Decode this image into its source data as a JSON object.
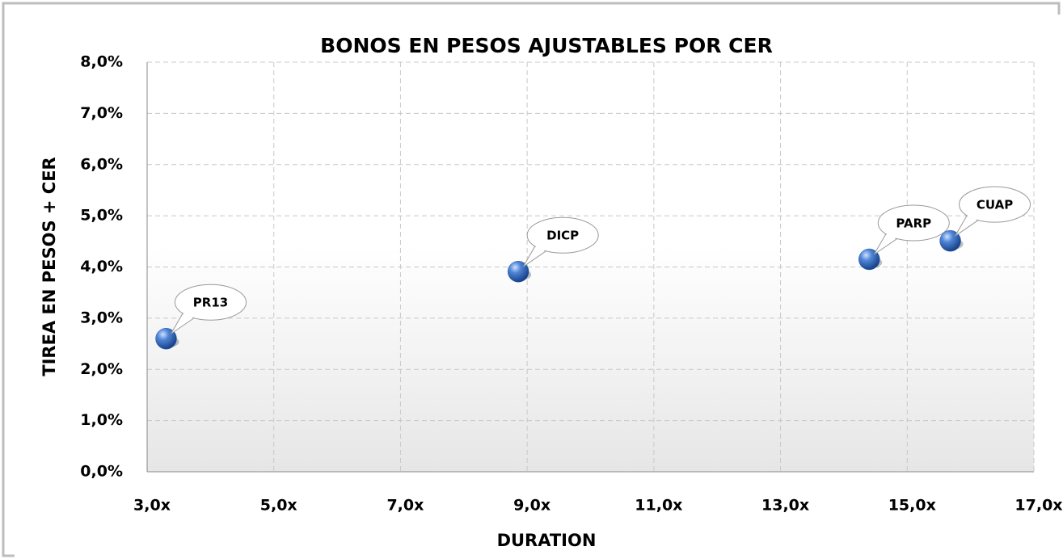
{
  "chart_data": {
    "type": "scatter",
    "title": "BONOS EN PESOS AJUSTABLES  POR CER",
    "xlabel": "DURATION",
    "ylabel": "TIREA EN PESOS + CER",
    "x": [
      3.3,
      8.86,
      14.4,
      15.68
    ],
    "values": [
      2.6,
      3.91,
      4.15,
      4.51
    ],
    "labels": [
      "PR13",
      "DICP",
      "PARP",
      "CUAP"
    ],
    "color": "#2f62b8",
    "xlim": [
      3,
      17
    ],
    "ylim": [
      0,
      8
    ],
    "xticks": [
      {
        "value": 3,
        "label": "3,0x"
      },
      {
        "value": 5,
        "label": "5,0x"
      },
      {
        "value": 7,
        "label": "7,0x"
      },
      {
        "value": 9,
        "label": "9,0x"
      },
      {
        "value": 11,
        "label": "11,0x"
      },
      {
        "value": 13,
        "label": "13,0x"
      },
      {
        "value": 15,
        "label": "15,0x"
      },
      {
        "value": 17,
        "label": "17,0x"
      }
    ],
    "yticks": [
      {
        "value": 0,
        "label": "0,0%"
      },
      {
        "value": 1,
        "label": "1,0%"
      },
      {
        "value": 2,
        "label": "2,0%"
      },
      {
        "value": 3,
        "label": "3,0%"
      },
      {
        "value": 4,
        "label": "4,0%"
      },
      {
        "value": 5,
        "label": "5,0%"
      },
      {
        "value": 6,
        "label": "6,0%"
      },
      {
        "value": 7,
        "label": "7,0%"
      },
      {
        "value": 8,
        "label": "8,0%"
      }
    ],
    "grid": true
  }
}
